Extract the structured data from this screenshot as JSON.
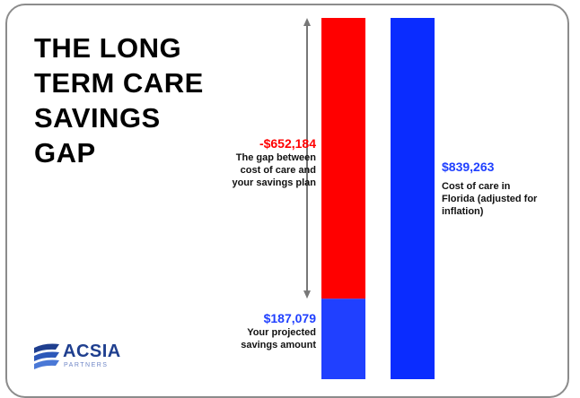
{
  "headline": {
    "lines": [
      "THE LONG",
      "TERM CARE",
      "SAVINGS",
      "GAP"
    ]
  },
  "annotations": {
    "gap": {
      "value": "-$652,184",
      "desc_lines": [
        "The gap between",
        "cost of care and",
        "your savings plan"
      ]
    },
    "savings": {
      "value": "$187,079",
      "desc_lines": [
        "Your projected",
        "savings amount"
      ]
    },
    "cost": {
      "value": "$839,263",
      "desc_lines": [
        "Cost of care in",
        "Florida (adjusted for",
        "inflation)"
      ]
    }
  },
  "logo": {
    "name": "ACSIA",
    "tagline": "PARTNERS"
  },
  "colors": {
    "gap": "#ff0000",
    "savings": "#2040ff",
    "cost": "#0a2cff",
    "arrow": "#777777"
  },
  "chart_data": {
    "type": "bar",
    "title": "",
    "xlabel": "",
    "ylabel": "",
    "ylim": [
      0,
      839263
    ],
    "bars": [
      {
        "name": "projected-savings-vs-gap",
        "segments": [
          {
            "label": "Your projected savings amount",
            "value": 187079,
            "display": "$187,079",
            "color": "#2040ff"
          },
          {
            "label": "The gap between cost of care and your savings plan",
            "value": 652184,
            "display": "-$652,184",
            "color": "#ff0000"
          }
        ]
      },
      {
        "name": "cost-of-care",
        "segments": [
          {
            "label": "Cost of care in Florida (adjusted for inflation)",
            "value": 839263,
            "display": "$839,263",
            "color": "#0a2cff"
          }
        ]
      }
    ]
  }
}
